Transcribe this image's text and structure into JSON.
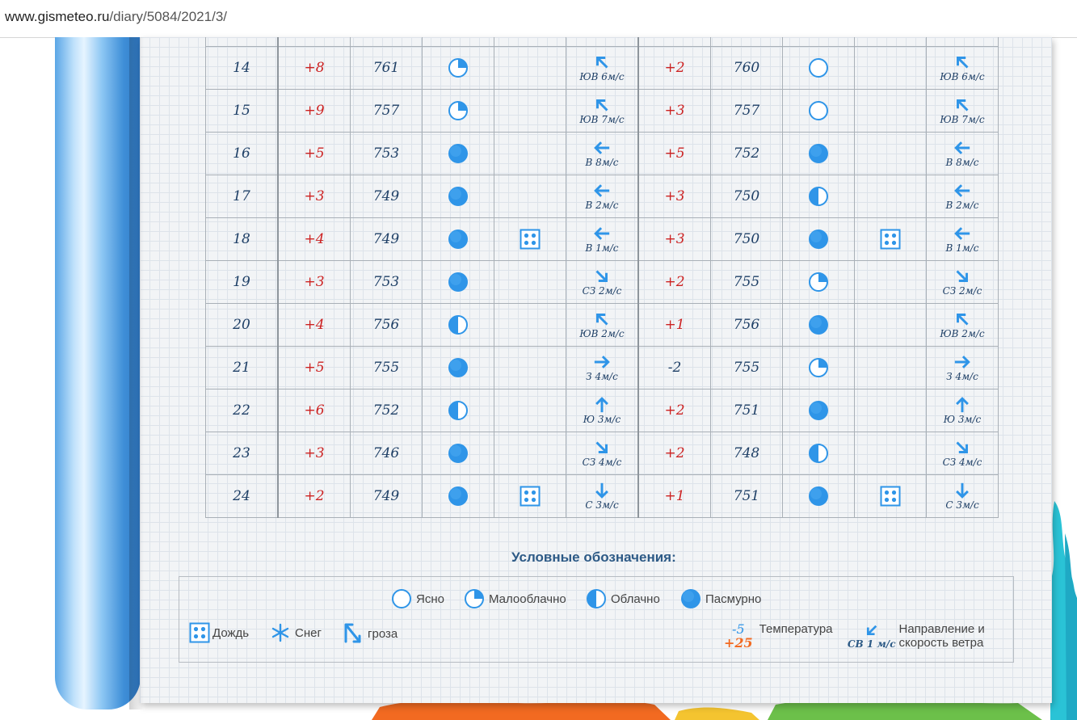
{
  "browser": {
    "url_host": "www.gismeteo.ru",
    "url_path": "/diary/5084/2021/3/"
  },
  "colors": {
    "accent_blue": "#2f95e8",
    "temp_positive": "#cc2222",
    "text_dark_blue": "#1e3f66"
  },
  "rows": [
    {
      "day": "14",
      "t1": "+8",
      "p1": "761",
      "c1": "partly",
      "r1": "",
      "w1": {
        "dir": "se",
        "label": "ЮВ 6м/с"
      },
      "t2": "+2",
      "p2": "760",
      "c2": "clear",
      "r2": "",
      "w2": {
        "dir": "se",
        "label": "ЮВ 6м/с"
      }
    },
    {
      "day": "15",
      "t1": "+9",
      "p1": "757",
      "c1": "partly",
      "r1": "",
      "w1": {
        "dir": "se",
        "label": "ЮВ 7м/с"
      },
      "t2": "+3",
      "p2": "757",
      "c2": "clear",
      "r2": "",
      "w2": {
        "dir": "se",
        "label": "ЮВ 7м/с"
      }
    },
    {
      "day": "16",
      "t1": "+5",
      "p1": "753",
      "c1": "overcast",
      "r1": "",
      "w1": {
        "dir": "e",
        "label": "В 8м/с"
      },
      "t2": "+5",
      "p2": "752",
      "c2": "overcast",
      "r2": "",
      "w2": {
        "dir": "e",
        "label": "В 8м/с"
      }
    },
    {
      "day": "17",
      "t1": "+3",
      "p1": "749",
      "c1": "overcast",
      "r1": "",
      "w1": {
        "dir": "e",
        "label": "В 2м/с"
      },
      "t2": "+3",
      "p2": "750",
      "c2": "cloudy",
      "r2": "",
      "w2": {
        "dir": "e",
        "label": "В 2м/с"
      }
    },
    {
      "day": "18",
      "t1": "+4",
      "p1": "749",
      "c1": "overcast",
      "r1": "rain",
      "w1": {
        "dir": "e",
        "label": "В 1м/с"
      },
      "t2": "+3",
      "p2": "750",
      "c2": "overcast",
      "r2": "rain",
      "w2": {
        "dir": "e",
        "label": "В 1м/с"
      }
    },
    {
      "day": "19",
      "t1": "+3",
      "p1": "753",
      "c1": "overcast",
      "r1": "",
      "w1": {
        "dir": "nw",
        "label": "СЗ 2м/с"
      },
      "t2": "+2",
      "p2": "755",
      "c2": "partly",
      "r2": "",
      "w2": {
        "dir": "nw",
        "label": "СЗ 2м/с"
      }
    },
    {
      "day": "20",
      "t1": "+4",
      "p1": "756",
      "c1": "cloudy",
      "r1": "",
      "w1": {
        "dir": "se",
        "label": "ЮВ 2м/с"
      },
      "t2": "+1",
      "p2": "756",
      "c2": "overcast",
      "r2": "",
      "w2": {
        "dir": "se",
        "label": "ЮВ 2м/с"
      }
    },
    {
      "day": "21",
      "t1": "+5",
      "p1": "755",
      "c1": "overcast",
      "r1": "",
      "w1": {
        "dir": "w",
        "label": "З 4м/с"
      },
      "t2": "-2",
      "p2": "755",
      "c2": "partly",
      "r2": "",
      "w2": {
        "dir": "w",
        "label": "З 4м/с"
      }
    },
    {
      "day": "22",
      "t1": "+6",
      "p1": "752",
      "c1": "cloudy",
      "r1": "",
      "w1": {
        "dir": "s",
        "label": "Ю 3м/с"
      },
      "t2": "+2",
      "p2": "751",
      "c2": "overcast",
      "r2": "",
      "w2": {
        "dir": "s",
        "label": "Ю 3м/с"
      }
    },
    {
      "day": "23",
      "t1": "+3",
      "p1": "746",
      "c1": "overcast",
      "r1": "",
      "w1": {
        "dir": "nw",
        "label": "СЗ 4м/с"
      },
      "t2": "+2",
      "p2": "748",
      "c2": "cloudy",
      "r2": "",
      "w2": {
        "dir": "nw",
        "label": "СЗ 4м/с"
      }
    },
    {
      "day": "24",
      "t1": "+2",
      "p1": "749",
      "c1": "overcast",
      "r1": "rain",
      "w1": {
        "dir": "n",
        "label": "С 3м/с"
      },
      "t2": "+1",
      "p2": "751",
      "c2": "overcast",
      "r2": "rain",
      "w2": {
        "dir": "n",
        "label": "С 3м/с"
      }
    }
  ],
  "legend": {
    "title": "Условные обозначения:",
    "clear": "Ясно",
    "partly": "Малооблачно",
    "cloudy": "Облачно",
    "overcast": "Пасмурно",
    "rain": "Дождь",
    "snow": "Снег",
    "storm": "гроза",
    "temp_example_neg": "-5",
    "temp_example_pos": "+25",
    "temp_label": "Температура",
    "wind_example": "СВ 1 м/с",
    "wind_label_1": "Направление и",
    "wind_label_2": "скорость ветра"
  }
}
